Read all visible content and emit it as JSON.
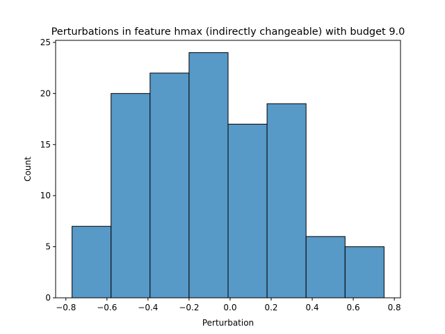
{
  "chart_data": {
    "type": "bar",
    "title": "Perturbations in feature hmax (indirectly changeable) with budget 9.0",
    "xlabel": "Perturbation",
    "ylabel": "Count",
    "xlim": [
      -0.85,
      0.83
    ],
    "ylim": [
      0,
      25.2
    ],
    "xticks": [
      -0.8,
      -0.6,
      -0.4,
      -0.2,
      0.0,
      0.2,
      0.4,
      0.6,
      0.8
    ],
    "xtick_labels": [
      "−0.8",
      "−0.6",
      "−0.4",
      "−0.2",
      "0.0",
      "0.2",
      "0.4",
      "0.6",
      "0.8"
    ],
    "yticks": [
      0,
      5,
      10,
      15,
      20,
      25
    ],
    "ytick_labels": [
      "0",
      "5",
      "10",
      "15",
      "20",
      "25"
    ],
    "bin_edges": [
      -0.77,
      -0.58,
      -0.39,
      -0.2,
      -0.01,
      0.18,
      0.37,
      0.56,
      0.75
    ],
    "values": [
      7,
      20,
      22,
      24,
      17,
      19,
      6,
      5
    ],
    "grid": false,
    "colors": {
      "bar_fill": "#5799c7",
      "bar_edge": "#000000"
    }
  }
}
